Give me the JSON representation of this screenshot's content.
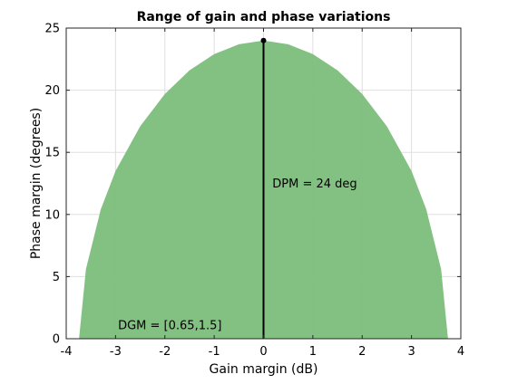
{
  "chart_data": {
    "type": "area",
    "title": "Range of gain and phase variations",
    "xlabel": "Gain margin (dB)",
    "ylabel": "Phase margin (degrees)",
    "xlim": [
      -4,
      4
    ],
    "ylim": [
      0,
      25
    ],
    "xticks": [
      -4,
      -3,
      -2,
      -1,
      0,
      1,
      2,
      3,
      4
    ],
    "yticks": [
      0,
      5,
      10,
      15,
      20,
      25
    ],
    "grid": true,
    "legend": "none",
    "region": {
      "name": "",
      "color": "#7fbf7f",
      "x": [
        -3.74,
        -3.6,
        -3.3,
        -3.0,
        -2.5,
        -2.0,
        -1.5,
        -1.0,
        -0.5,
        0,
        0.5,
        1.0,
        1.5,
        2.0,
        2.5,
        3.0,
        3.3,
        3.6,
        3.74
      ],
      "y": [
        0,
        5.6,
        10.4,
        13.5,
        17.1,
        19.7,
        21.6,
        22.9,
        23.7,
        24,
        23.7,
        22.9,
        21.6,
        19.7,
        17.1,
        13.5,
        10.4,
        5.6,
        0
      ]
    },
    "peak_line": {
      "x": 0,
      "y": [
        0,
        24
      ],
      "color": "#000000"
    },
    "peak_marker": {
      "x": 0,
      "y": 24
    },
    "annotations": [
      {
        "text": "DPM = 24 deg",
        "x": 0.18,
        "y": 12.5
      },
      {
        "text": "DGM = [0.65,1.5]",
        "x": -2.95,
        "y": 1.1
      }
    ]
  }
}
